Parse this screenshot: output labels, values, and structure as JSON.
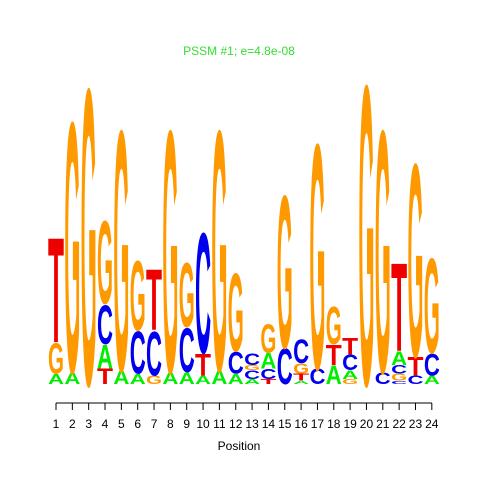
{
  "chart_data": {
    "type": "sequence-logo",
    "title": "PSSM #1; e=4.8e-08",
    "xlabel": "Position",
    "ylabel": "",
    "x": [
      1,
      2,
      3,
      4,
      5,
      6,
      7,
      8,
      9,
      10,
      11,
      12,
      13,
      14,
      15,
      16,
      17,
      18,
      19,
      20,
      21,
      22,
      23,
      24
    ],
    "ylim": [
      0,
      2
    ],
    "colors": {
      "A": "#00ee00",
      "C": "#0000ee",
      "G": "#ff9900",
      "T": "#ee0000",
      "title": "#33dd33"
    },
    "positions": [
      {
        "pos": 1,
        "letters": [
          {
            "base": "A",
            "height": 0.06
          },
          {
            "base": "G",
            "height": 0.18
          },
          {
            "base": "T",
            "height": 0.62
          }
        ]
      },
      {
        "pos": 2,
        "letters": [
          {
            "base": "A",
            "height": 0.07
          },
          {
            "base": "G",
            "height": 1.48
          }
        ]
      },
      {
        "pos": 3,
        "letters": [
          {
            "base": "G",
            "height": 1.75
          }
        ]
      },
      {
        "pos": 4,
        "letters": [
          {
            "base": "T",
            "height": 0.09
          },
          {
            "base": "A",
            "height": 0.14
          },
          {
            "base": "C",
            "height": 0.23
          },
          {
            "base": "G",
            "height": 0.49
          }
        ]
      },
      {
        "pos": 5,
        "letters": [
          {
            "base": "A",
            "height": 0.08
          },
          {
            "base": "G",
            "height": 1.42
          }
        ]
      },
      {
        "pos": 6,
        "letters": [
          {
            "base": "A",
            "height": 0.06
          },
          {
            "base": "C",
            "height": 0.25
          },
          {
            "base": "G",
            "height": 0.41
          }
        ]
      },
      {
        "pos": 7,
        "letters": [
          {
            "base": "G",
            "height": 0.05
          },
          {
            "base": "C",
            "height": 0.26
          },
          {
            "base": "T",
            "height": 0.36
          }
        ]
      },
      {
        "pos": 8,
        "letters": [
          {
            "base": "A",
            "height": 0.07
          },
          {
            "base": "G",
            "height": 1.43
          }
        ]
      },
      {
        "pos": 9,
        "letters": [
          {
            "base": "A",
            "height": 0.07
          },
          {
            "base": "C",
            "height": 0.26
          },
          {
            "base": "G",
            "height": 0.38
          }
        ]
      },
      {
        "pos": 10,
        "letters": [
          {
            "base": "A",
            "height": 0.05
          },
          {
            "base": "T",
            "height": 0.13
          },
          {
            "base": "C",
            "height": 0.71
          }
        ]
      },
      {
        "pos": 11,
        "letters": [
          {
            "base": "A",
            "height": 0.08
          },
          {
            "base": "G",
            "height": 1.42
          }
        ]
      },
      {
        "pos": 12,
        "letters": [
          {
            "base": "A",
            "height": 0.06
          },
          {
            "base": "C",
            "height": 0.13
          },
          {
            "base": "G",
            "height": 0.46
          }
        ]
      },
      {
        "pos": 13,
        "letters": [
          {
            "base": "A",
            "height": 0.03
          },
          {
            "base": "C",
            "height": 0.05
          },
          {
            "base": "G",
            "height": 0.03
          },
          {
            "base": "C",
            "height": 0.07
          }
        ]
      },
      {
        "pos": 14,
        "letters": [
          {
            "base": "T",
            "height": 0.03
          },
          {
            "base": "C",
            "height": 0.06
          },
          {
            "base": "A",
            "height": 0.09
          },
          {
            "base": "G",
            "height": 0.17
          }
        ]
      },
      {
        "pos": 15,
        "letters": [
          {
            "base": "C",
            "height": 0.21
          },
          {
            "base": "G",
            "height": 0.9
          }
        ]
      },
      {
        "pos": 16,
        "letters": [
          {
            "base": "A",
            "height": 0.02
          },
          {
            "base": "T",
            "height": 0.04
          },
          {
            "base": "G",
            "height": 0.06
          },
          {
            "base": "C",
            "height": 0.14
          }
        ]
      },
      {
        "pos": 17,
        "letters": [
          {
            "base": "C",
            "height": 0.09
          },
          {
            "base": "G",
            "height": 1.33
          }
        ]
      },
      {
        "pos": 18,
        "letters": [
          {
            "base": "A",
            "height": 0.11
          },
          {
            "base": "T",
            "height": 0.12
          },
          {
            "base": "G",
            "height": 0.22
          }
        ]
      },
      {
        "pos": 19,
        "letters": [
          {
            "base": "G",
            "height": 0.03
          },
          {
            "base": "A",
            "height": 0.05
          },
          {
            "base": "C",
            "height": 0.09
          },
          {
            "base": "T",
            "height": 0.1
          }
        ]
      },
      {
        "pos": 20,
        "letters": [
          {
            "base": "G",
            "height": 1.77
          }
        ]
      },
      {
        "pos": 21,
        "letters": [
          {
            "base": "C",
            "height": 0.07
          },
          {
            "base": "G",
            "height": 1.43
          }
        ]
      },
      {
        "pos": 22,
        "letters": [
          {
            "base": "C",
            "height": 0.02
          },
          {
            "base": "G",
            "height": 0.04
          },
          {
            "base": "C",
            "height": 0.05
          },
          {
            "base": "A",
            "height": 0.08
          },
          {
            "base": "T",
            "height": 0.52
          }
        ]
      },
      {
        "pos": 23,
        "letters": [
          {
            "base": "C",
            "height": 0.05
          },
          {
            "base": "T",
            "height": 0.11
          },
          {
            "base": "G",
            "height": 1.14
          }
        ]
      },
      {
        "pos": 24,
        "letters": [
          {
            "base": "A",
            "height": 0.05
          },
          {
            "base": "C",
            "height": 0.13
          },
          {
            "base": "G",
            "height": 0.56
          }
        ]
      }
    ]
  }
}
